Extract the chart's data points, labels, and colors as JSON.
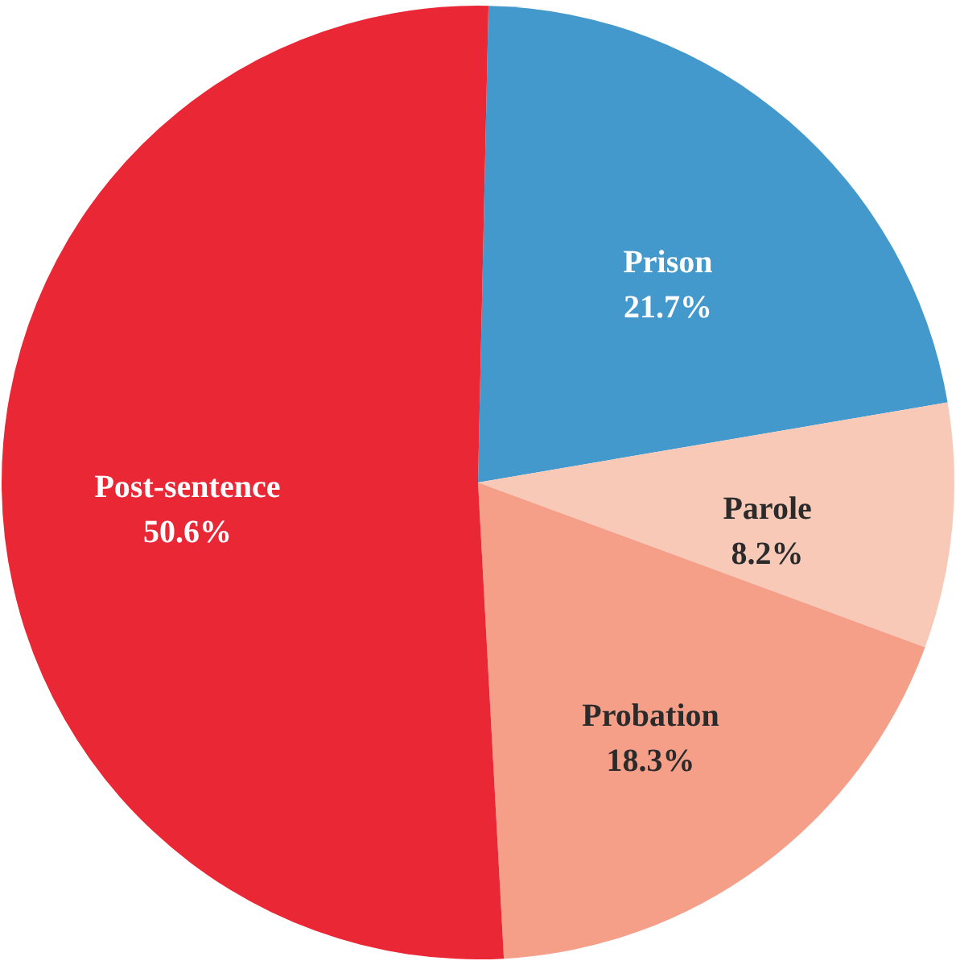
{
  "chart_data": {
    "type": "pie",
    "categories": [
      "Prison",
      "Parole",
      "Probation",
      "Post-sentence"
    ],
    "values": [
      21.7,
      8.2,
      18.3,
      50.6
    ],
    "colors": [
      "#4398cc",
      "#f9c9b8",
      "#f59f88",
      "#e92735"
    ],
    "value_labels": [
      "21.7%",
      "8.2%",
      "18.3%",
      "50.6%"
    ]
  }
}
